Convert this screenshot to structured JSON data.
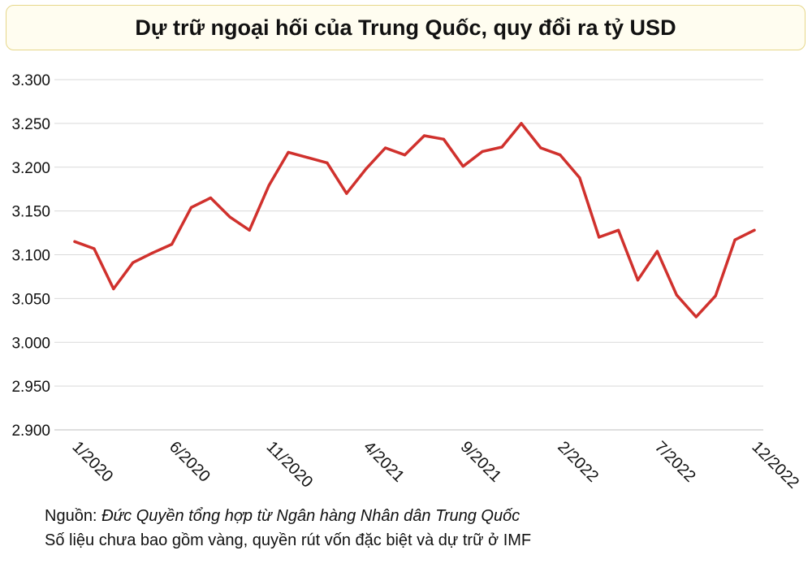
{
  "chart_data": {
    "type": "line",
    "title": "Dự trữ ngoại hối của Trung Quốc, quy đổi ra tỷ USD",
    "xlabel": "",
    "ylabel": "",
    "ylim": [
      2900,
      3300
    ],
    "y_ticks": [
      2900,
      2950,
      3000,
      3050,
      3100,
      3150,
      3200,
      3250,
      3300
    ],
    "y_tick_labels": [
      "2.900",
      "2.950",
      "3.000",
      "3.050",
      "3.100",
      "3.150",
      "3.200",
      "3.250",
      "3.300"
    ],
    "x_tick_labels": [
      "1/2020",
      "6/2020",
      "11/2020",
      "4/2021",
      "9/2021",
      "2/2022",
      "7/2022",
      "12/2022"
    ],
    "x_tick_indices": [
      0,
      5,
      10,
      15,
      20,
      25,
      30,
      35
    ],
    "grid": true,
    "line_color": "#d0312d",
    "series": [
      {
        "values": [
          3115,
          3107,
          3061,
          3091,
          3102,
          3112,
          3154,
          3165,
          3143,
          3128,
          3179,
          3217,
          3211,
          3205,
          3170,
          3198,
          3222,
          3214,
          3236,
          3232,
          3201,
          3218,
          3223,
          3250,
          3222,
          3214,
          3188,
          3120,
          3128,
          3071,
          3104,
          3054,
          3029,
          3053,
          3117,
          3128
        ]
      }
    ]
  },
  "footnote": {
    "source_label": "Nguồn:",
    "source_text": "Đức Quyền tổng hợp từ Ngân hàng Nhân dân Trung Quốc",
    "note": "Số liệu chưa bao gồm vàng, quyền rút vốn đặc biệt và dự trữ ở IMF"
  }
}
